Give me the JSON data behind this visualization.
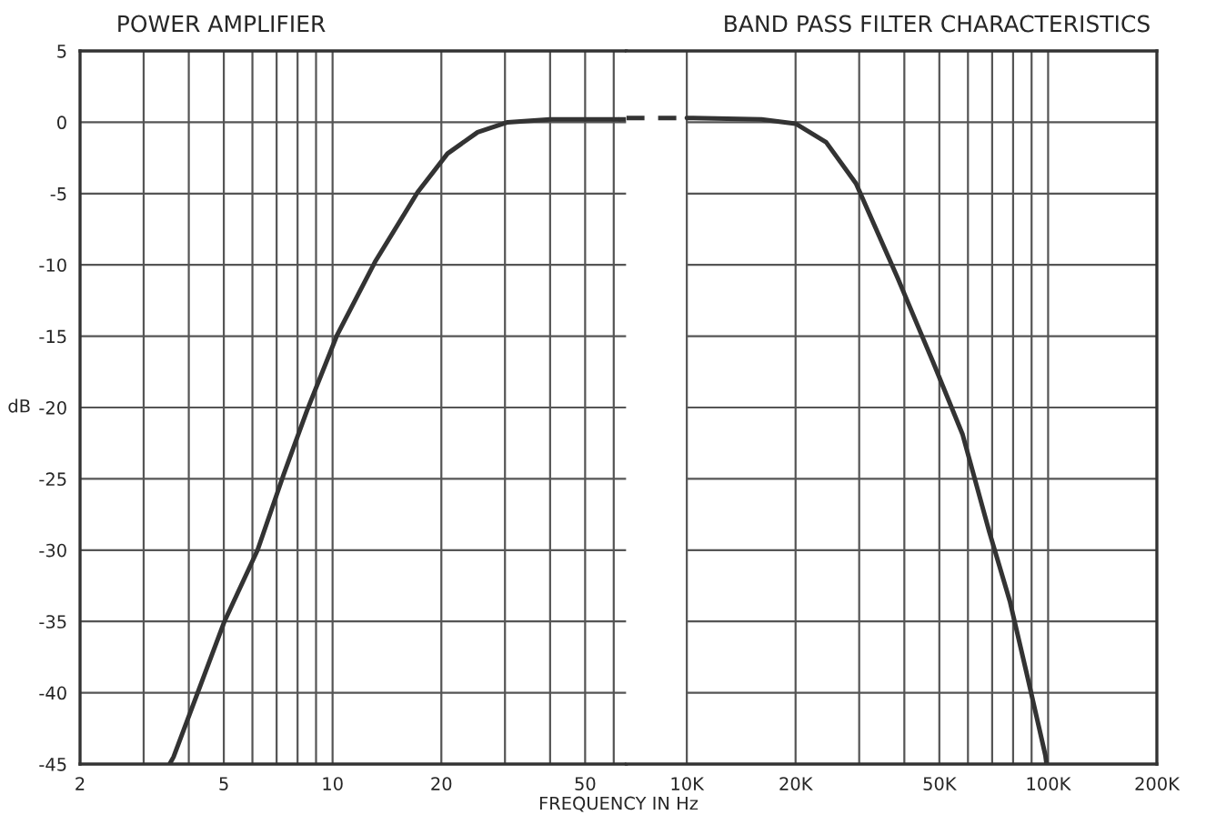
{
  "chart_data": [
    {
      "type": "line",
      "title": "POWER AMPLIFIER",
      "xlabel": "FREQUENCY IN Hz",
      "ylabel": "dB",
      "log": "x",
      "xlim": [
        2,
        65
      ],
      "ylim": [
        -45,
        5
      ],
      "xticks": [
        2,
        {
          "value": 3,
          "label": null
        },
        {
          "value": 4,
          "label": null
        },
        5,
        {
          "value": 6,
          "label": null
        },
        {
          "value": 7,
          "label": null
        },
        {
          "value": 8,
          "label": null
        },
        {
          "value": 9,
          "label": null
        },
        10,
        20,
        {
          "value": 30,
          "label": null
        },
        {
          "value": 40,
          "label": null
        },
        50,
        {
          "value": 60,
          "label": null
        }
      ],
      "yticks": [
        -45,
        -40,
        -35,
        -30,
        -25,
        -20,
        -15,
        -10,
        -5,
        0,
        5
      ],
      "grid": true,
      "marker": "none",
      "series": [
        {
          "color": "#333333",
          "line_style": "solid",
          "x": [
            3.54,
            3.63,
            5.02,
            6.2,
            7.32,
            8.5,
            10.3,
            13.1,
            17.2,
            20.8,
            25.2,
            30.5,
            40,
            62
          ],
          "values": [
            -45,
            -44.5,
            -35,
            -30,
            -24.7,
            -20.2,
            -14.9,
            -9.8,
            -4.9,
            -2.2,
            -0.7,
            0,
            0.2,
            0.2
          ]
        },
        {
          "color": "#333333",
          "line_style": "dashed",
          "x": [
            62,
            65
          ],
          "values": [
            0.2,
            0.2
          ]
        }
      ]
    },
    {
      "type": "line",
      "title": "BAND PASS FILTER CHARACTERISTICS",
      "log": "x",
      "xlim": [
        6800,
        200000
      ],
      "ylim": [
        -45,
        5
      ],
      "tick_labels": "x",
      "xticks": [
        {
          "value": 10000,
          "label": "10K"
        },
        {
          "value": 20000,
          "label": "20K"
        },
        {
          "value": 30000,
          "label": null
        },
        {
          "value": 40000,
          "label": null
        },
        {
          "value": 50000,
          "label": "50K"
        },
        {
          "value": 60000,
          "label": null
        },
        {
          "value": 70000,
          "label": null
        },
        {
          "value": 80000,
          "label": null
        },
        {
          "value": 90000,
          "label": null
        },
        {
          "value": 100000,
          "label": "100K"
        },
        {
          "value": 200000,
          "label": "200K"
        }
      ],
      "yticks": [
        -45,
        -40,
        -35,
        -30,
        -25,
        -20,
        -15,
        -10,
        -5,
        0,
        5
      ],
      "grid": true,
      "marker": "none",
      "series": [
        {
          "color": "#333333",
          "line_style": "dashed",
          "x": [
            6800,
            10000
          ],
          "values": [
            0.3,
            0.3
          ]
        },
        {
          "color": "#333333",
          "line_style": "solid",
          "x": [
            10000,
            16100,
            20000,
            24300,
            29400,
            38300,
            48000,
            58000,
            68700,
            78400,
            87700,
            98300,
            99000
          ],
          "values": [
            0.3,
            0.2,
            -0.1,
            -1.4,
            -4.3,
            -10.9,
            -16.8,
            -21.9,
            -28.7,
            -33.6,
            -38.9,
            -44.4,
            -45
          ]
        }
      ]
    }
  ]
}
